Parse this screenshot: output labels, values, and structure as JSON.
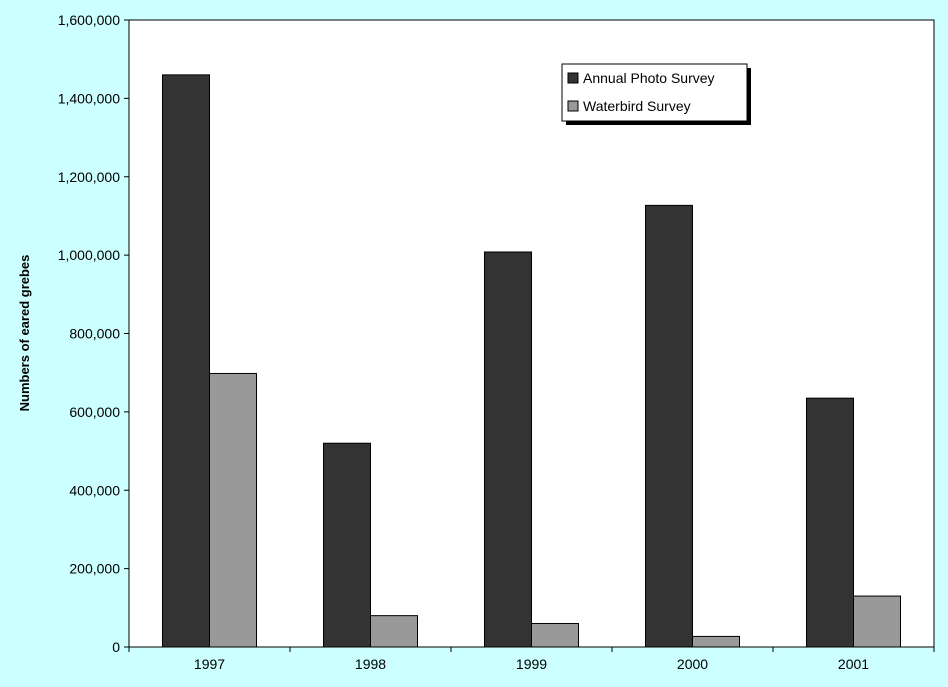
{
  "chart_data": {
    "type": "bar",
    "title": "",
    "xlabel": "",
    "ylabel": "Numbers of eared grebes",
    "categories": [
      "1997",
      "1998",
      "1999",
      "2000",
      "2001"
    ],
    "series": [
      {
        "name": "Annual Photo Survey",
        "color": "#333333",
        "values": [
          1460000,
          520000,
          1008000,
          1127000,
          635000
        ]
      },
      {
        "name": "Waterbird Survey",
        "color": "#999999",
        "values": [
          698000,
          80000,
          60000,
          27000,
          130000
        ]
      }
    ],
    "ylim": [
      0,
      1600000
    ],
    "yticks": [
      0,
      200000,
      400000,
      600000,
      800000,
      1000000,
      1200000,
      1400000,
      1600000
    ],
    "ytick_labels": [
      "0",
      "200,000",
      "400,000",
      "600,000",
      "800,000",
      "1,000,000",
      "1,200,000",
      "1,400,000",
      "1,600,000"
    ],
    "grid": false,
    "legend_position": "top-right"
  },
  "colors": {
    "background": "#ccffff",
    "plot_area": "#ffffff"
  }
}
